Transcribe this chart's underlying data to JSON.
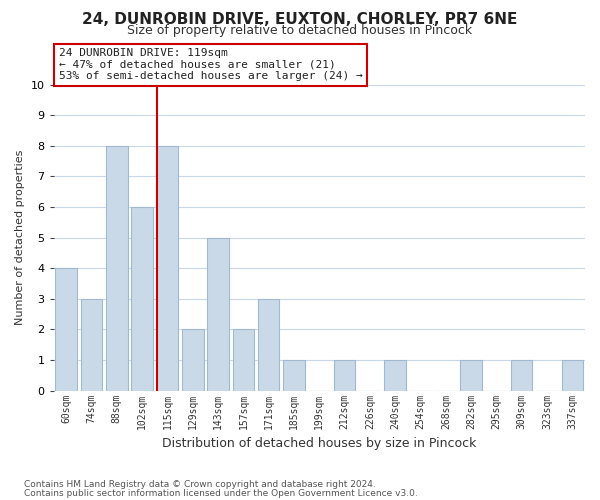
{
  "title": "24, DUNROBIN DRIVE, EUXTON, CHORLEY, PR7 6NE",
  "subtitle": "Size of property relative to detached houses in Pincock",
  "xlabel": "Distribution of detached houses by size in Pincock",
  "ylabel": "Number of detached properties",
  "bar_labels": [
    "60sqm",
    "74sqm",
    "88sqm",
    "102sqm",
    "115sqm",
    "129sqm",
    "143sqm",
    "157sqm",
    "171sqm",
    "185sqm",
    "199sqm",
    "212sqm",
    "226sqm",
    "240sqm",
    "254sqm",
    "268sqm",
    "282sqm",
    "295sqm",
    "309sqm",
    "323sqm",
    "337sqm"
  ],
  "bar_values": [
    4,
    3,
    8,
    6,
    8,
    2,
    5,
    2,
    3,
    1,
    0,
    1,
    0,
    1,
    0,
    0,
    1,
    0,
    1,
    0,
    1
  ],
  "bar_color": "#c9d9e8",
  "bar_edge_color": "#a0b8d0",
  "vline_index": 4,
  "vline_color": "#cc0000",
  "ylim": [
    0,
    10
  ],
  "yticks": [
    0,
    1,
    2,
    3,
    4,
    5,
    6,
    7,
    8,
    9,
    10
  ],
  "annotation_title": "24 DUNROBIN DRIVE: 119sqm",
  "annotation_line1": "← 47% of detached houses are smaller (21)",
  "annotation_line2": "53% of semi-detached houses are larger (24) →",
  "footnote1": "Contains HM Land Registry data © Crown copyright and database right 2024.",
  "footnote2": "Contains public sector information licensed under the Open Government Licence v3.0.",
  "grid_color": "#c8d8e8",
  "bg_color": "#ffffff"
}
